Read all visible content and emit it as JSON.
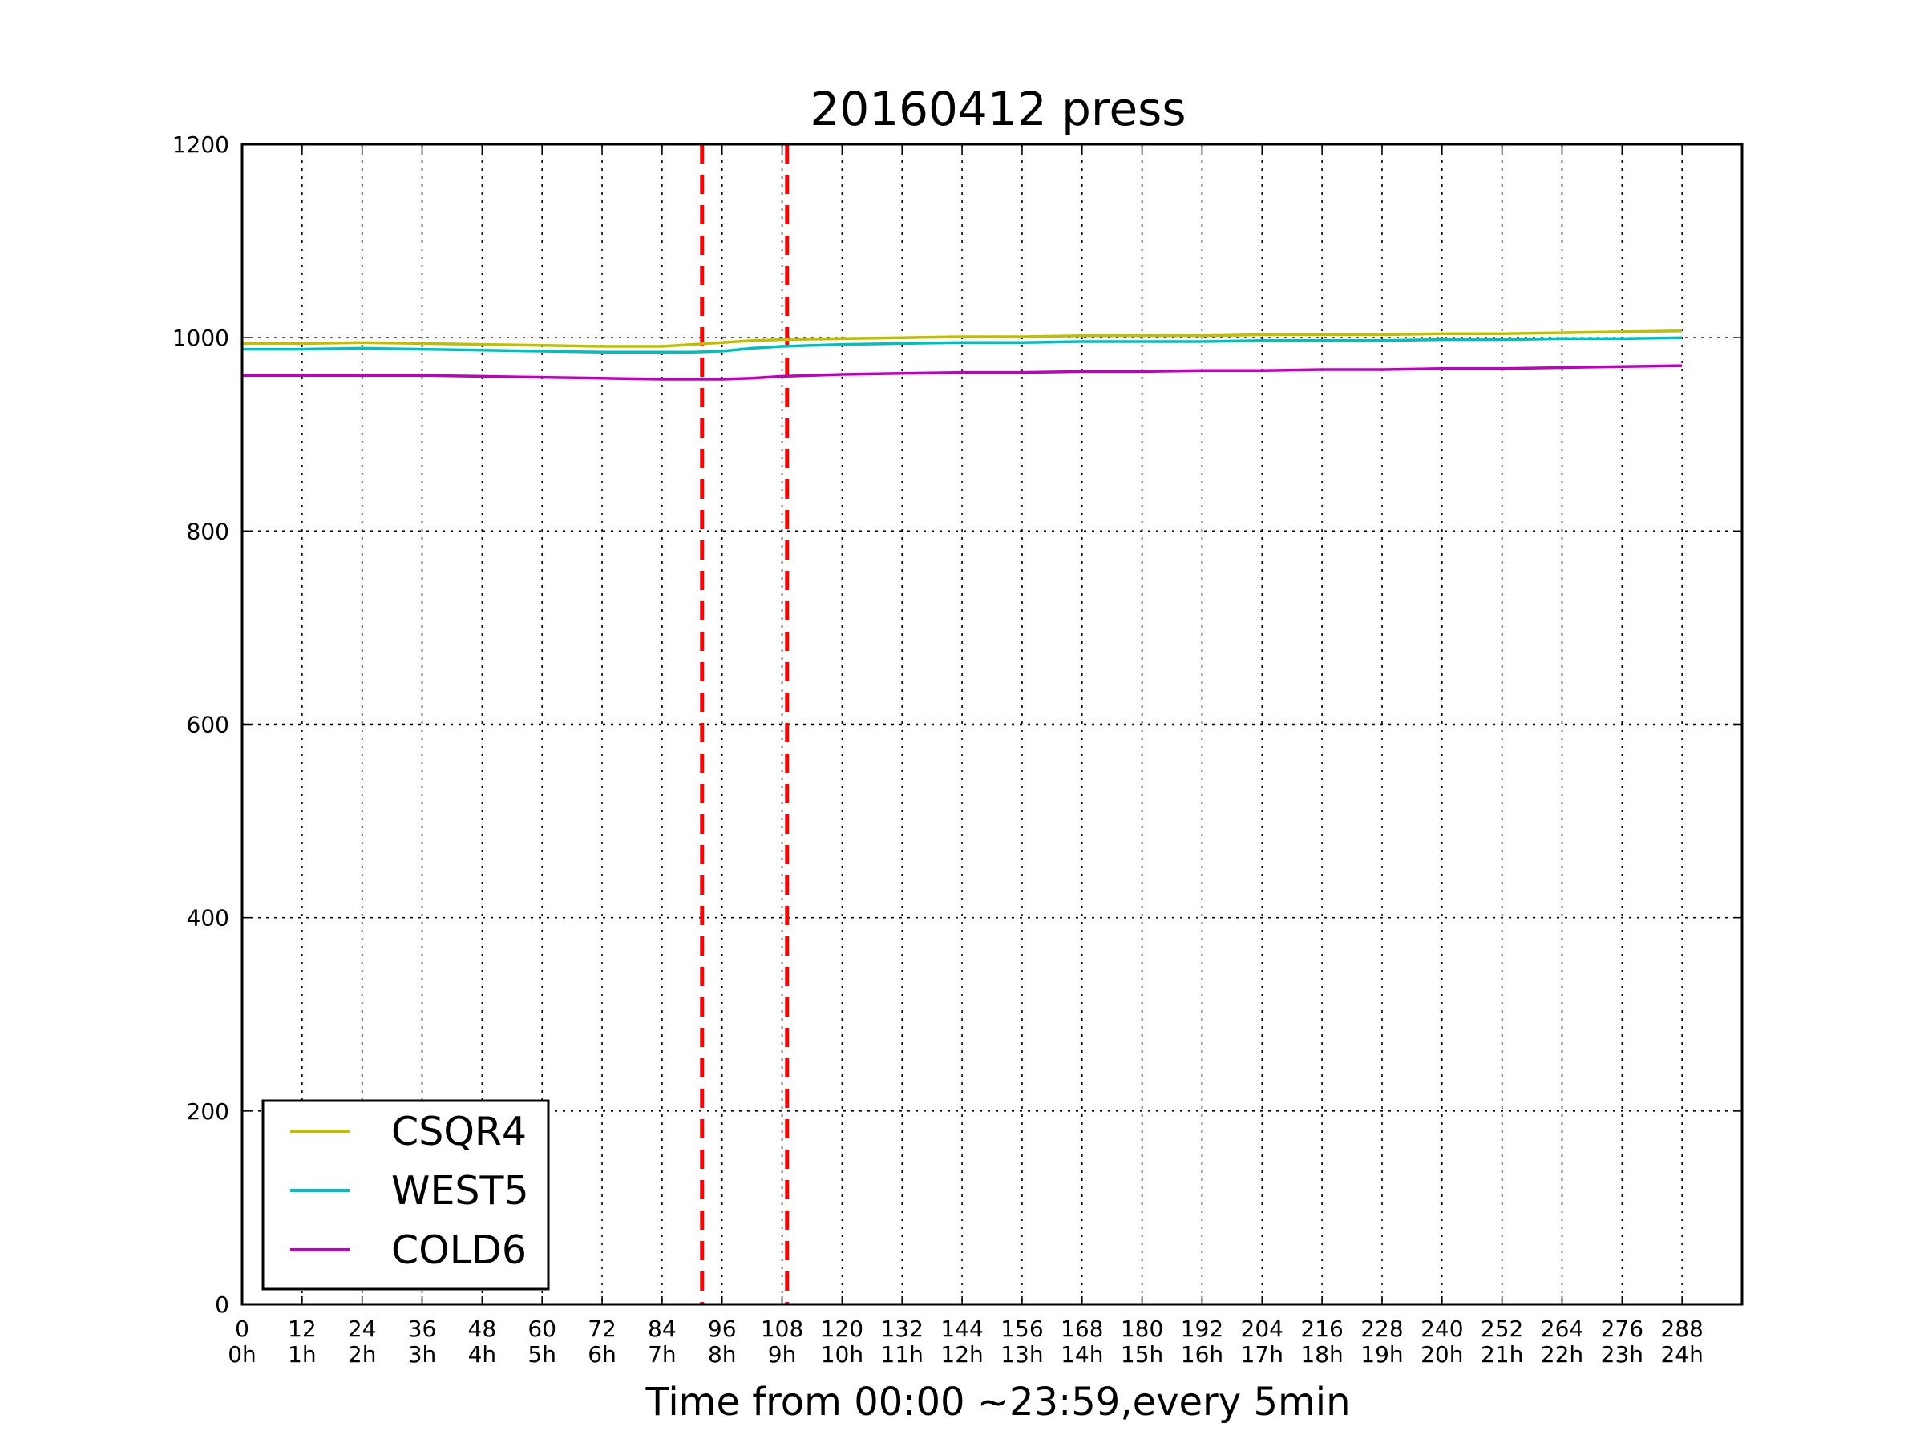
{
  "chart_data": {
    "type": "line",
    "title": "20160412 press",
    "xlabel": "Time from 00:00 ~23:59,every 5min",
    "ylabel": "",
    "xlim": [
      0,
      300
    ],
    "ylim": [
      0,
      1200
    ],
    "grid": true,
    "legend_position": "lower-left",
    "x_ticks": [
      0,
      12,
      24,
      36,
      48,
      60,
      72,
      84,
      96,
      108,
      120,
      132,
      144,
      156,
      168,
      180,
      192,
      204,
      216,
      228,
      240,
      252,
      264,
      276,
      288
    ],
    "x_tick_labels": [
      "0\n0h",
      "12\n1h",
      "24\n2h",
      "36\n3h",
      "48\n4h",
      "60\n5h",
      "72\n6h",
      "84\n7h",
      "96\n8h",
      "108\n9h",
      "120\n10h",
      "132\n11h",
      "144\n12h",
      "156\n13h",
      "168\n14h",
      "180\n15h",
      "192\n16h",
      "204\n17h",
      "216\n18h",
      "228\n19h",
      "240\n20h",
      "252\n21h",
      "264\n22h",
      "276\n23h",
      "288\n24h"
    ],
    "y_ticks": [
      0,
      200,
      400,
      600,
      800,
      1000,
      1200
    ],
    "x": [
      0,
      12,
      24,
      36,
      48,
      60,
      72,
      84,
      90,
      96,
      102,
      108,
      120,
      132,
      144,
      156,
      168,
      180,
      192,
      204,
      216,
      228,
      240,
      252,
      264,
      276,
      288
    ],
    "series": [
      {
        "name": "CSQR4",
        "color": "#bfbf00",
        "values": [
          994,
          994,
          995,
          994,
          993,
          992,
          991,
          991,
          993,
          995,
          997,
          998,
          999,
          1000,
          1001,
          1001,
          1002,
          1002,
          1002,
          1003,
          1003,
          1003,
          1004,
          1004,
          1005,
          1006,
          1007
        ]
      },
      {
        "name": "WEST5",
        "color": "#00bfbf",
        "values": [
          988,
          988,
          989,
          988,
          987,
          986,
          985,
          985,
          985,
          986,
          989,
          991,
          993,
          994,
          995,
          995,
          996,
          996,
          996,
          997,
          997,
          997,
          998,
          998,
          999,
          999,
          1000
        ]
      },
      {
        "name": "COLD6",
        "color": "#bf00bf",
        "values": [
          961,
          961,
          961,
          961,
          960,
          959,
          958,
          957,
          957,
          957,
          958,
          960,
          962,
          963,
          964,
          964,
          965,
          965,
          966,
          966,
          967,
          967,
          968,
          968,
          969,
          970,
          971
        ]
      }
    ],
    "vertical_markers": [
      {
        "x": 92,
        "color": "#ff0000",
        "style": "dashed"
      },
      {
        "x": 109,
        "color": "#ff0000",
        "style": "dashed"
      }
    ]
  }
}
